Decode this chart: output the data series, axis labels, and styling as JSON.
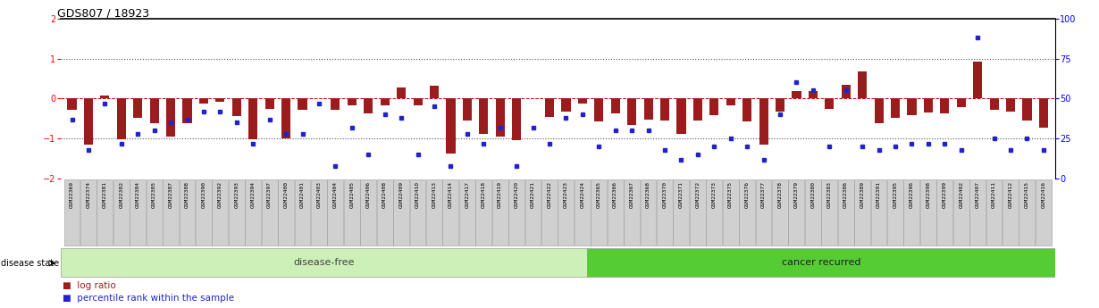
{
  "title": "GDS807 / 18923",
  "samples": [
    "GSM22369",
    "GSM22374",
    "GSM22381",
    "GSM22382",
    "GSM22384",
    "GSM22385",
    "GSM22387",
    "GSM22388",
    "GSM22390",
    "GSM22392",
    "GSM22393",
    "GSM22394",
    "GSM22397",
    "GSM22400",
    "GSM22401",
    "GSM22403",
    "GSM22404",
    "GSM22405",
    "GSM22406",
    "GSM22408",
    "GSM22409",
    "GSM22410",
    "GSM22413",
    "GSM22414",
    "GSM22417",
    "GSM22418",
    "GSM22419",
    "GSM22420",
    "GSM22421",
    "GSM22422",
    "GSM22423",
    "GSM22424",
    "GSM22365",
    "GSM22366",
    "GSM22367",
    "GSM22368",
    "GSM22370",
    "GSM22371",
    "GSM22372",
    "GSM22373",
    "GSM22375",
    "GSM22376",
    "GSM22377",
    "GSM22378",
    "GSM22379",
    "GSM22380",
    "GSM22383",
    "GSM22386",
    "GSM22389",
    "GSM22391",
    "GSM22395",
    "GSM22396",
    "GSM22398",
    "GSM22399",
    "GSM22402",
    "GSM22407",
    "GSM22411",
    "GSM22412",
    "GSM22415",
    "GSM22416"
  ],
  "log_ratios": [
    -0.28,
    -1.15,
    0.07,
    -1.02,
    -0.48,
    -0.62,
    -0.95,
    -0.62,
    -0.12,
    -0.08,
    -0.43,
    -1.02,
    -0.26,
    -1.0,
    -0.28,
    0.02,
    -0.28,
    -0.18,
    -0.38,
    -0.17,
    0.28,
    -0.18,
    0.32,
    -1.38,
    -0.55,
    -0.88,
    -0.95,
    -1.05,
    0.02,
    -0.45,
    -0.32,
    -0.12,
    -0.58,
    -0.38,
    -0.65,
    -0.52,
    -0.55,
    -0.88,
    -0.55,
    -0.42,
    -0.18,
    -0.58,
    -1.15,
    -0.32,
    0.18,
    0.18,
    -0.25,
    0.35,
    0.68,
    -0.62,
    -0.48,
    -0.42,
    -0.35,
    -0.38,
    -0.22,
    0.92,
    -0.28,
    -0.32,
    -0.55,
    -0.72
  ],
  "percentile_ranks": [
    37,
    18,
    47,
    22,
    28,
    30,
    35,
    37,
    42,
    42,
    35,
    22,
    37,
    28,
    28,
    47,
    8,
    32,
    15,
    40,
    38,
    15,
    45,
    8,
    28,
    22,
    32,
    8,
    32,
    22,
    38,
    40,
    20,
    30,
    30,
    30,
    18,
    12,
    15,
    20,
    25,
    20,
    12,
    40,
    60,
    55,
    20,
    55,
    20,
    18,
    20,
    22,
    22,
    22,
    18,
    88,
    25,
    18,
    25,
    18
  ],
  "disease_free_count": 32,
  "cancer_recurred_count": 28,
  "bar_color": "#9b1c1c",
  "dot_color": "#2222cc",
  "ylim_left": [
    -2.0,
    2.0
  ],
  "ylim_right": [
    0,
    100
  ],
  "yticks_left": [
    -2,
    -1,
    0,
    1,
    2
  ],
  "yticks_right": [
    0,
    25,
    50,
    75,
    100
  ],
  "bg_disease_free": "#ccf0b8",
  "bg_cancer_recurred": "#55cc33",
  "label_disease_free": "disease-free",
  "label_cancer_recurred": "cancer recurred",
  "disease_state_label": "disease state",
  "legend_log_ratio": "log ratio",
  "legend_percentile": "percentile rank within the sample"
}
